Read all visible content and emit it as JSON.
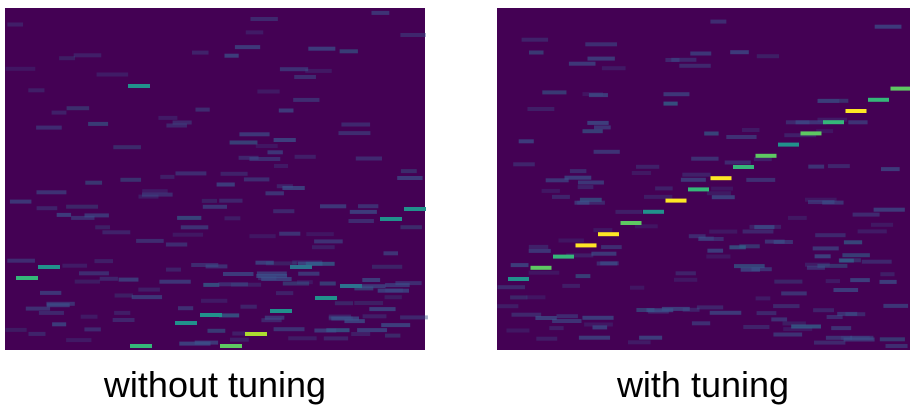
{
  "panels": [
    {
      "caption": "without tuning"
    },
    {
      "caption": "with tuning"
    }
  ]
}
